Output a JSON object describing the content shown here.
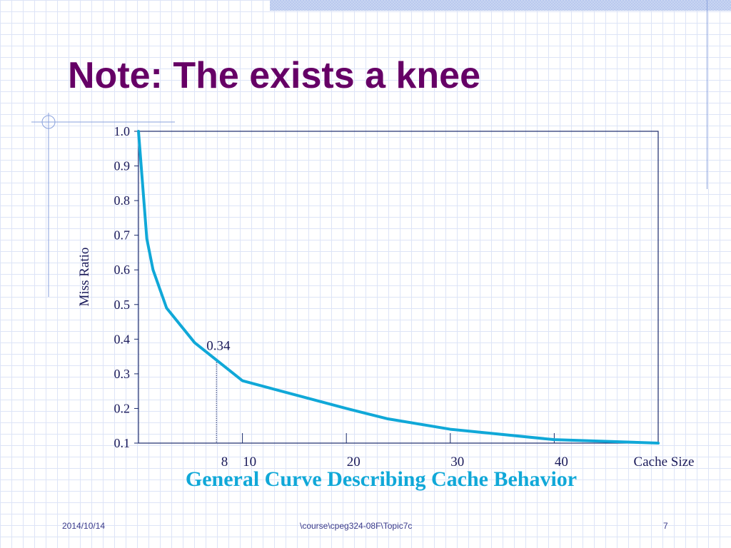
{
  "slide": {
    "title": "Note: The exists a knee",
    "caption": "General Curve Describing Cache Behavior",
    "footer": {
      "date": "2014/10/14",
      "path": "\\course\\cpeg324-08F\\Topic7c",
      "page": "7"
    }
  },
  "colors": {
    "title": "#660066",
    "curve": "#10a8d8",
    "axis": "#1a2a6c",
    "caption": "#10a8d8",
    "grid": "#dde4f7"
  },
  "chart_data": {
    "type": "line",
    "ylabel": "Miss Ratio",
    "xlabel": "Cache Size",
    "ylim": [
      0.1,
      1.0
    ],
    "xlim": [
      0,
      50
    ],
    "y_ticks": [
      1.0,
      0.9,
      0.8,
      0.7,
      0.6,
      0.5,
      0.4,
      0.3,
      0.2,
      0.1
    ],
    "y_tick_labels": [
      "1.0",
      "0.9",
      "0.8",
      "0.7",
      "0.6",
      "0.5",
      "0.4",
      "0.3",
      "0.2",
      "0.1"
    ],
    "x_ticks": [
      8,
      10,
      20,
      30,
      40
    ],
    "x_tick_labels": [
      "8",
      "10",
      "20",
      "30",
      "40"
    ],
    "grid": false,
    "series": [
      {
        "x": [
          0.0,
          0.8,
          1.4,
          2.7,
          5.4,
          10.0,
          20.0,
          24.0,
          30.0,
          40.0,
          50.0
        ],
        "y": [
          1.0,
          0.69,
          0.6,
          0.49,
          0.39,
          0.28,
          0.2,
          0.17,
          0.14,
          0.11,
          0.1
        ]
      }
    ],
    "annotations": [
      {
        "text": "0.34",
        "x": 7.5,
        "y": 0.34,
        "drop_line_x": 7.5
      }
    ]
  }
}
